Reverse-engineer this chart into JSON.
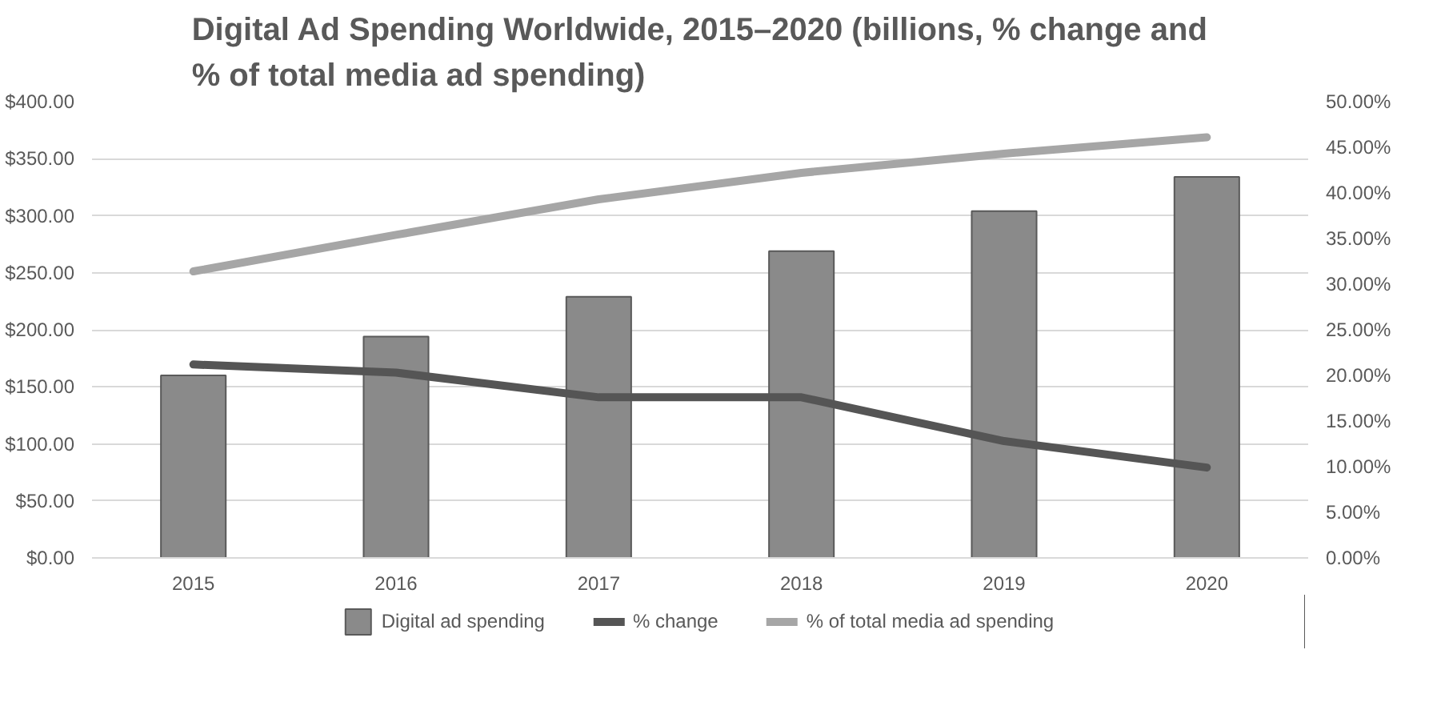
{
  "chart_data": {
    "type": "bar",
    "title": "Digital Ad Spending Worldwide, 2015–2020 (billions, % change and\n% of total media ad spending)",
    "categories": [
      "2015",
      "2016",
      "2017",
      "2018",
      "2019",
      "2020"
    ],
    "series": [
      {
        "name": "Digital ad spending",
        "color": "#8a8a8a",
        "values": [
          160,
          194,
          229,
          269,
          304,
          334
        ]
      },
      {
        "name": "% change",
        "type": "line",
        "axis": "y2",
        "color": "#555555",
        "values": [
          21.2,
          20.3,
          17.6,
          17.6,
          12.8,
          9.9
        ]
      },
      {
        "name": "% of total media ad spending",
        "type": "line",
        "axis": "y2",
        "color": "#a6a6a6",
        "values": [
          31.4,
          35.4,
          39.3,
          42.2,
          44.3,
          46.1
        ]
      }
    ],
    "ylim": [
      0,
      400
    ],
    "yticks": [
      {
        "value": 0,
        "label": "$0.00"
      },
      {
        "value": 50,
        "label": "$50.00"
      },
      {
        "value": 100,
        "label": "$100.00"
      },
      {
        "value": 150,
        "label": "$150.00"
      },
      {
        "value": 200,
        "label": "$200.00"
      },
      {
        "value": 250,
        "label": "$250.00"
      },
      {
        "value": 300,
        "label": "$300.00"
      },
      {
        "value": 350,
        "label": "$350.00"
      },
      {
        "value": 400,
        "label": "$400.00"
      }
    ],
    "y2lim": [
      0,
      50
    ],
    "y2ticks": [
      {
        "value": 0,
        "label": "0.00%"
      },
      {
        "value": 5,
        "label": "5.00%"
      },
      {
        "value": 10,
        "label": "10.00%"
      },
      {
        "value": 15,
        "label": "15.00%"
      },
      {
        "value": 20,
        "label": "20.00%"
      },
      {
        "value": 25,
        "label": "25.00%"
      },
      {
        "value": 30,
        "label": "30.00%"
      },
      {
        "value": 35,
        "label": "35.00%"
      },
      {
        "value": 40,
        "label": "40.00%"
      },
      {
        "value": 45,
        "label": "45.00%"
      },
      {
        "value": 50,
        "label": "50.00%"
      }
    ],
    "grid": "y",
    "legend": "bottom"
  }
}
